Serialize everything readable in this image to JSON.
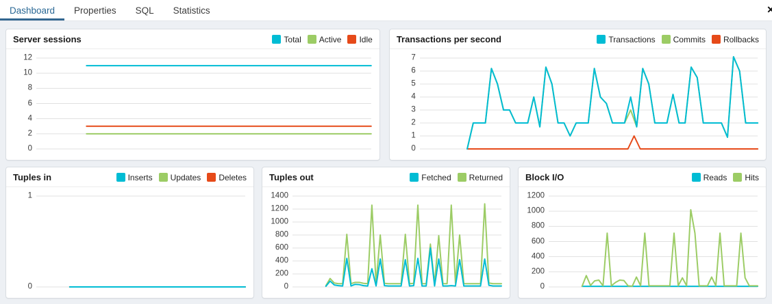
{
  "tabs": {
    "items": [
      {
        "label": "Dashboard",
        "active": true
      },
      {
        "label": "Properties",
        "active": false
      },
      {
        "label": "SQL",
        "active": false
      },
      {
        "label": "Statistics",
        "active": false
      }
    ],
    "close_icon": "✕"
  },
  "colors": {
    "active_tab": "#326690",
    "cyan": "#00BCD4",
    "green": "#9CCC65",
    "red": "#E64A19",
    "panel_bg": "#ffffff",
    "page_bg": "#edf0f4",
    "grid": "#e0e0e0"
  },
  "chart_data": [
    {
      "type": "line",
      "title": "Server sessions",
      "xlabel": "",
      "ylabel": "",
      "ylim": [
        0,
        12
      ],
      "yticks": [
        0,
        2,
        4,
        6,
        8,
        10,
        12
      ],
      "grid": true,
      "legend_position": "top-right",
      "x_tick_labels_visible": false,
      "draw_order": [
        1,
        2,
        0
      ],
      "series": [
        {
          "name": "Total",
          "color": "#00BCD4",
          "x_start": 0.15,
          "values": [
            11,
            11
          ]
        },
        {
          "name": "Active",
          "color": "#9CCC65",
          "x_start": 0.15,
          "values": [
            2,
            2
          ]
        },
        {
          "name": "Idle",
          "color": "#E64A19",
          "x_start": 0.15,
          "values": [
            3,
            3
          ]
        }
      ]
    },
    {
      "type": "line",
      "title": "Transactions per second",
      "xlabel": "",
      "ylabel": "",
      "ylim": [
        0,
        7
      ],
      "yticks": [
        0,
        1,
        2,
        3,
        4,
        5,
        6,
        7
      ],
      "grid": true,
      "legend_position": "top-right",
      "x_tick_labels_visible": false,
      "draw_order": [
        1,
        2,
        0
      ],
      "series": [
        {
          "name": "Transactions",
          "color": "#00BCD4",
          "x_start": 0.14,
          "values": [
            0,
            2,
            2,
            2,
            6.2,
            5,
            3,
            3,
            2,
            2,
            2,
            4,
            1.7,
            6.3,
            5,
            2,
            2,
            1,
            2,
            2,
            2,
            6.2,
            4,
            3.5,
            2,
            2,
            2,
            4,
            1.7,
            6.2,
            5,
            2,
            2,
            2,
            4.2,
            2,
            2,
            6.3,
            5.5,
            2,
            2,
            2,
            2,
            0.9,
            7.1,
            6,
            2,
            2,
            2
          ]
        },
        {
          "name": "Commits",
          "color": "#9CCC65",
          "x_start": 0.14,
          "values": [
            0,
            2,
            2,
            2,
            6.2,
            5,
            3,
            3,
            2,
            2,
            2,
            4,
            1.7,
            6.3,
            5,
            2,
            2,
            1,
            2,
            2,
            2,
            6.2,
            4,
            3.5,
            2,
            2,
            2,
            3,
            1.7,
            6.2,
            5,
            2,
            2,
            2,
            4.2,
            2,
            2,
            6.3,
            5.5,
            2,
            2,
            2,
            2,
            0.9,
            7.1,
            6,
            2,
            2,
            2
          ]
        },
        {
          "name": "Rollbacks",
          "color": "#E64A19",
          "x_start": 0.14,
          "values": [
            0,
            0,
            0,
            0,
            0,
            0,
            0,
            0,
            0,
            0,
            0,
            0,
            0,
            0,
            0,
            0,
            0,
            0,
            0,
            0,
            0,
            0,
            0,
            0,
            0,
            0,
            0,
            1,
            0,
            0,
            0,
            0,
            0,
            0,
            0,
            0,
            0,
            0,
            0,
            0,
            0,
            0,
            0,
            0,
            0,
            0,
            0,
            0
          ]
        }
      ]
    },
    {
      "type": "line",
      "title": "Tuples in",
      "xlabel": "",
      "ylabel": "",
      "ylim": [
        0,
        1
      ],
      "yticks": [
        0,
        1
      ],
      "grid": true,
      "legend_position": "top-right",
      "x_tick_labels_visible": false,
      "draw_order": [
        1,
        2,
        0
      ],
      "series": [
        {
          "name": "Inserts",
          "color": "#00BCD4",
          "x_start": 0.16,
          "values": [
            0,
            0
          ]
        },
        {
          "name": "Updates",
          "color": "#9CCC65",
          "x_start": 0.16,
          "values": [
            0,
            0
          ]
        },
        {
          "name": "Deletes",
          "color": "#E64A19",
          "x_start": 0.16,
          "values": [
            0,
            0
          ]
        }
      ]
    },
    {
      "type": "line",
      "title": "Tuples out",
      "xlabel": "",
      "ylabel": "",
      "ylim": [
        0,
        1400
      ],
      "yticks": [
        0,
        200,
        400,
        600,
        800,
        1000,
        1200,
        1400
      ],
      "grid": true,
      "legend_position": "top-right",
      "x_tick_labels_visible": false,
      "draw_order": [
        1,
        0
      ],
      "series": [
        {
          "name": "Fetched",
          "color": "#00BCD4",
          "x_start": 0.16,
          "values": [
            10,
            90,
            30,
            20,
            15,
            440,
            15,
            40,
            35,
            20,
            15,
            280,
            15,
            430,
            20,
            15,
            15,
            15,
            15,
            420,
            15,
            20,
            440,
            15,
            15,
            600,
            15,
            430,
            15,
            15,
            20,
            15,
            420,
            15,
            15,
            15,
            15,
            15,
            430,
            25,
            15,
            15,
            15
          ]
        },
        {
          "name": "Returned",
          "color": "#9CCC65",
          "x_start": 0.16,
          "values": [
            20,
            130,
            60,
            50,
            50,
            810,
            50,
            70,
            70,
            55,
            50,
            1260,
            50,
            800,
            55,
            50,
            50,
            50,
            50,
            810,
            50,
            55,
            1260,
            50,
            50,
            660,
            50,
            790,
            50,
            50,
            1260,
            55,
            800,
            50,
            50,
            50,
            50,
            50,
            1280,
            60,
            50,
            50,
            50
          ]
        }
      ]
    },
    {
      "type": "line",
      "title": "Block I/O",
      "xlabel": "",
      "ylabel": "",
      "ylim": [
        0,
        1200
      ],
      "yticks": [
        0,
        200,
        400,
        600,
        800,
        1000,
        1200
      ],
      "grid": true,
      "legend_position": "top-right",
      "x_tick_labels_visible": false,
      "draw_order": [
        0,
        1
      ],
      "series": [
        {
          "name": "Reads",
          "color": "#00BCD4",
          "x_start": 0.16,
          "values": [
            8,
            8
          ]
        },
        {
          "name": "Hits",
          "color": "#9CCC65",
          "x_start": 0.16,
          "values": [
            10,
            150,
            20,
            80,
            90,
            15,
            710,
            15,
            60,
            90,
            85,
            15,
            10,
            130,
            15,
            710,
            15,
            15,
            15,
            15,
            15,
            15,
            710,
            15,
            120,
            15,
            1020,
            710,
            15,
            15,
            15,
            130,
            15,
            710,
            15,
            15,
            15,
            15,
            710,
            120,
            15,
            15,
            15
          ]
        }
      ]
    }
  ]
}
